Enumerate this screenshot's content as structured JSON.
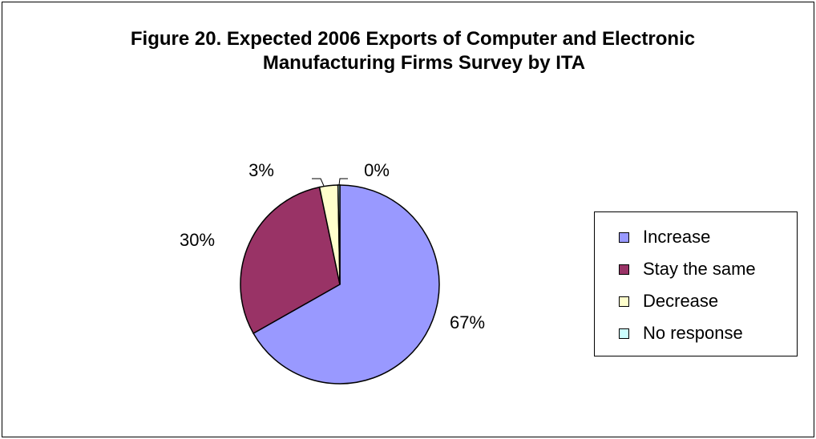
{
  "chart_data": {
    "type": "pie",
    "title_lines": [
      "Figure 20.  Expected 2006 Exports of Computer and Electronic",
      "Manufacturing Firms Survey by ITA"
    ],
    "slices": [
      {
        "label": "Increase",
        "value": 67,
        "display": "67%",
        "color": "#9999ff"
      },
      {
        "label": "Stay the same",
        "value": 30,
        "display": "30%",
        "color": "#993366"
      },
      {
        "label": "Decrease",
        "value": 3,
        "display": "3%",
        "color": "#ffffcc"
      },
      {
        "label": "No response",
        "value": 0.3,
        "display": "0%",
        "color": "#ccffff"
      }
    ],
    "legend_position": "right"
  }
}
